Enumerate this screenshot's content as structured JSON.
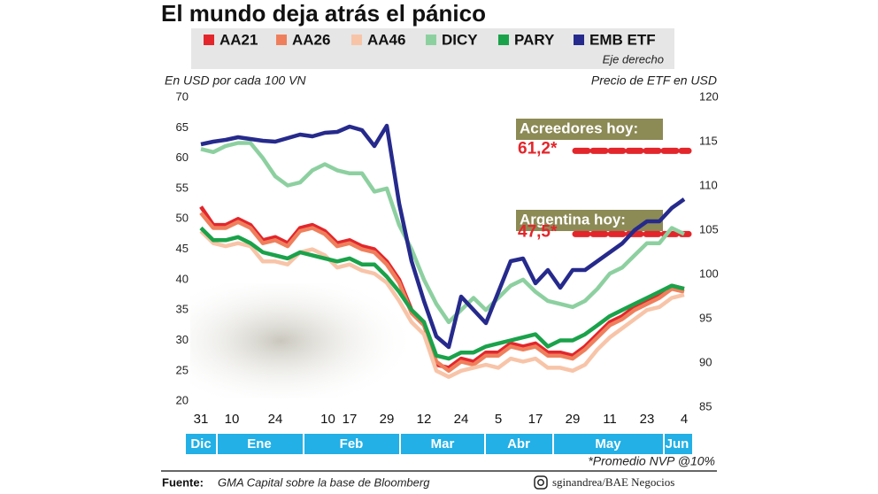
{
  "chart_data": {
    "type": "line",
    "title": "El mundo deja atrás el pánico",
    "legend_note": "Eje derecho",
    "ylabel": "En USD por cada 100 VN",
    "y2label": "Precio de ETF en USD",
    "footnote": "*Promedio NVP @10%",
    "source_label": "Fuente:",
    "source": "GMA Capital sobre la base de Bloomberg",
    "credit": "sginandrea/BAE Negocios",
    "ylim": [
      19,
      70
    ],
    "yticks": [
      20,
      25,
      30,
      35,
      40,
      45,
      50,
      55,
      60,
      65,
      70
    ],
    "y2lim": [
      85,
      120
    ],
    "y2ticks": [
      85,
      90,
      95,
      100,
      105,
      110,
      115,
      120
    ],
    "xlim": [
      -2,
      158
    ],
    "xticks": [
      {
        "value": 0,
        "label": "31"
      },
      {
        "value": 10,
        "label": "10"
      },
      {
        "value": 24,
        "label": "24"
      },
      {
        "value": 41,
        "label": "10"
      },
      {
        "value": 48,
        "label": "17"
      },
      {
        "value": 60,
        "label": "29"
      },
      {
        "value": 72,
        "label": "12"
      },
      {
        "value": 84,
        "label": "24"
      },
      {
        "value": 96,
        "label": "5"
      },
      {
        "value": 108,
        "label": "17"
      },
      {
        "value": 120,
        "label": "29"
      },
      {
        "value": 132,
        "label": "11"
      },
      {
        "value": 144,
        "label": "23"
      },
      {
        "value": 156,
        "label": "4"
      }
    ],
    "months": [
      "Dic",
      "Ene",
      "Feb",
      "Mar",
      "Abr",
      "May",
      "Jun"
    ],
    "x": [
      0,
      4,
      8,
      12,
      16,
      20,
      24,
      28,
      32,
      36,
      40,
      44,
      48,
      52,
      56,
      60,
      64,
      68,
      72,
      76,
      80,
      84,
      88,
      92,
      96,
      100,
      104,
      108,
      112,
      116,
      120,
      124,
      128,
      132,
      136,
      140,
      144,
      148,
      152,
      156
    ],
    "series": [
      {
        "name": "AA21",
        "color": "#e3262b",
        "values": [
          52,
          49,
          49,
          50,
          49,
          46.5,
          47,
          46,
          48.5,
          49,
          48,
          46,
          46.5,
          45.5,
          45,
          43,
          40,
          35,
          33,
          26,
          25.5,
          27,
          26.5,
          28,
          28,
          29.5,
          29,
          29.5,
          28,
          28,
          27.5,
          29,
          31,
          33,
          34,
          35.5,
          36.5,
          37.5,
          39,
          38.5
        ]
      },
      {
        "name": "AA26",
        "color": "#ef7f5c",
        "values": [
          51,
          48.5,
          48.5,
          49.5,
          48.5,
          46,
          46.5,
          45.5,
          48,
          48.5,
          47.5,
          45.5,
          46,
          45,
          44.5,
          42.5,
          39.5,
          34.5,
          32.5,
          26.5,
          25,
          26.5,
          26,
          27.5,
          27.5,
          29,
          28.5,
          29,
          27.5,
          27.5,
          27,
          28.5,
          30.5,
          32.5,
          33.5,
          35,
          36,
          37,
          38.5,
          38
        ]
      },
      {
        "name": "AA46",
        "color": "#f8c4a8",
        "values": [
          48,
          46,
          45.5,
          46,
          45.5,
          43,
          43,
          42.5,
          44.5,
          45,
          44,
          42,
          42.5,
          41.5,
          41,
          39.5,
          36.5,
          33,
          31,
          25,
          24,
          25,
          25.5,
          26,
          25.5,
          27,
          26.5,
          27,
          25.5,
          25.5,
          25,
          26,
          28.5,
          30.5,
          32,
          33.5,
          35,
          35.5,
          37,
          37.5
        ]
      },
      {
        "name": "DICY",
        "color": "#8dd0a0",
        "values": [
          61.5,
          61,
          62,
          62.5,
          62.5,
          60,
          57,
          55.5,
          56,
          58,
          59,
          58,
          57.5,
          57.5,
          54.5,
          55,
          49,
          45,
          40,
          36,
          33,
          35,
          37,
          35,
          37,
          39,
          40,
          38,
          36.5,
          36,
          35.5,
          36.5,
          38.5,
          41,
          42,
          44,
          46,
          46,
          48.5,
          47.5
        ]
      },
      {
        "name": "PARY",
        "color": "#1aa24a",
        "values": [
          48.5,
          46.5,
          46.5,
          47,
          46,
          44.5,
          44,
          43.5,
          44.5,
          44,
          43.5,
          43,
          43.5,
          42.5,
          42.5,
          40.5,
          38,
          35,
          33,
          27.5,
          27,
          28,
          28,
          29,
          29.5,
          30,
          30.5,
          31,
          29,
          30,
          30,
          31,
          32.5,
          34,
          35,
          36,
          37,
          38,
          39,
          38.5
        ]
      },
      {
        "name": "EMB ETF",
        "color": "#262a8c",
        "axis": "y2",
        "values": [
          114.7,
          115,
          115.2,
          115.5,
          115.3,
          115.1,
          115,
          115.4,
          115.8,
          115.6,
          116,
          116.1,
          116.7,
          116.3,
          114.5,
          116.8,
          108,
          101.5,
          97,
          93,
          91.8,
          97.5,
          96,
          94.5,
          98,
          101.5,
          101.8,
          99,
          100.5,
          98.5,
          100.5,
          100.5,
          101.5,
          102.5,
          103.5,
          105,
          106,
          106,
          107.5,
          108.5
        ]
      }
    ],
    "annotations": [
      {
        "label": "Acreedores hoy:",
        "value": 61.2,
        "value_label": "61,2*"
      },
      {
        "label": "Argentina hoy:",
        "value": 47.5,
        "value_label": "47,5*"
      }
    ]
  }
}
